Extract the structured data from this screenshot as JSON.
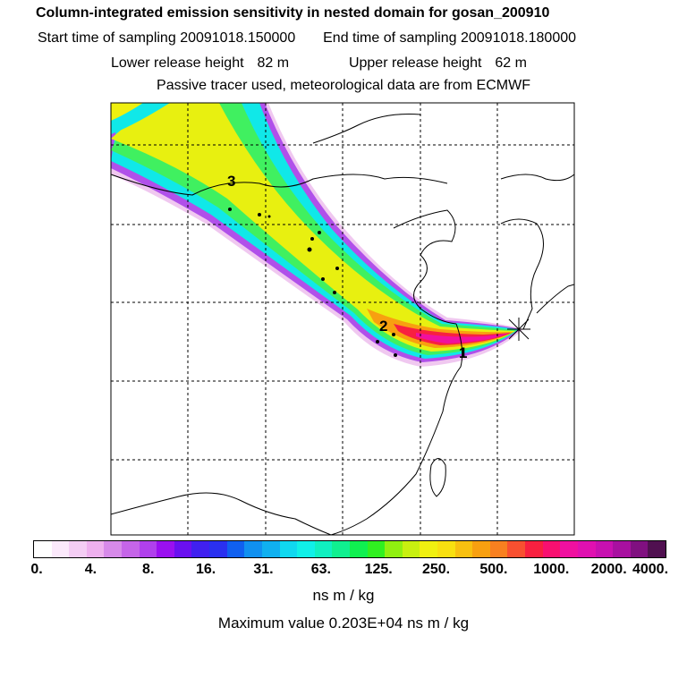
{
  "title": "Column-integrated emission sensitivity in nested domain for gosan_200910",
  "sampling": {
    "start_label": "Start time of sampling",
    "start_value": "20091018.150000",
    "end_label": "End time of sampling",
    "end_value": "20091018.180000"
  },
  "release": {
    "lower_label": "Lower release height",
    "lower_value": "82 m",
    "upper_label": "Upper release height",
    "upper_value": "62 m"
  },
  "subtitle": "Passive tracer used, meteorological data are from ECMWF",
  "map": {
    "markers": [
      "1",
      "2",
      "3"
    ],
    "receptor": "gosan-site-marker"
  },
  "colorbar": {
    "colors": [
      "#ffffff",
      "#fbe9fb",
      "#f4cdf4",
      "#eeb0ee",
      "#d78ae9",
      "#c565e8",
      "#b040ec",
      "#9a10f0",
      "#6a10f0",
      "#4020f0",
      "#2a30f0",
      "#1060f0",
      "#1090f0",
      "#10b0f0",
      "#10d8f0",
      "#10f0e8",
      "#10f0c0",
      "#10f090",
      "#10f050",
      "#30f020",
      "#90f010",
      "#c8f010",
      "#f0f010",
      "#f8e010",
      "#f8c010",
      "#f8a010",
      "#f88020",
      "#f85030",
      "#f82040",
      "#f81070",
      "#f010a0",
      "#e010b0",
      "#c810b0",
      "#a810a0",
      "#801080",
      "#501050"
    ],
    "tick_labels": [
      "0.",
      "4.",
      "8.",
      "16.",
      "31.",
      "63.",
      "125.",
      "250.",
      "500.",
      "1000.",
      "2000.",
      "4000."
    ],
    "unit": "ns m / kg"
  },
  "max_value_label": "Maximum value  0.203E+04 ns m / kg"
}
